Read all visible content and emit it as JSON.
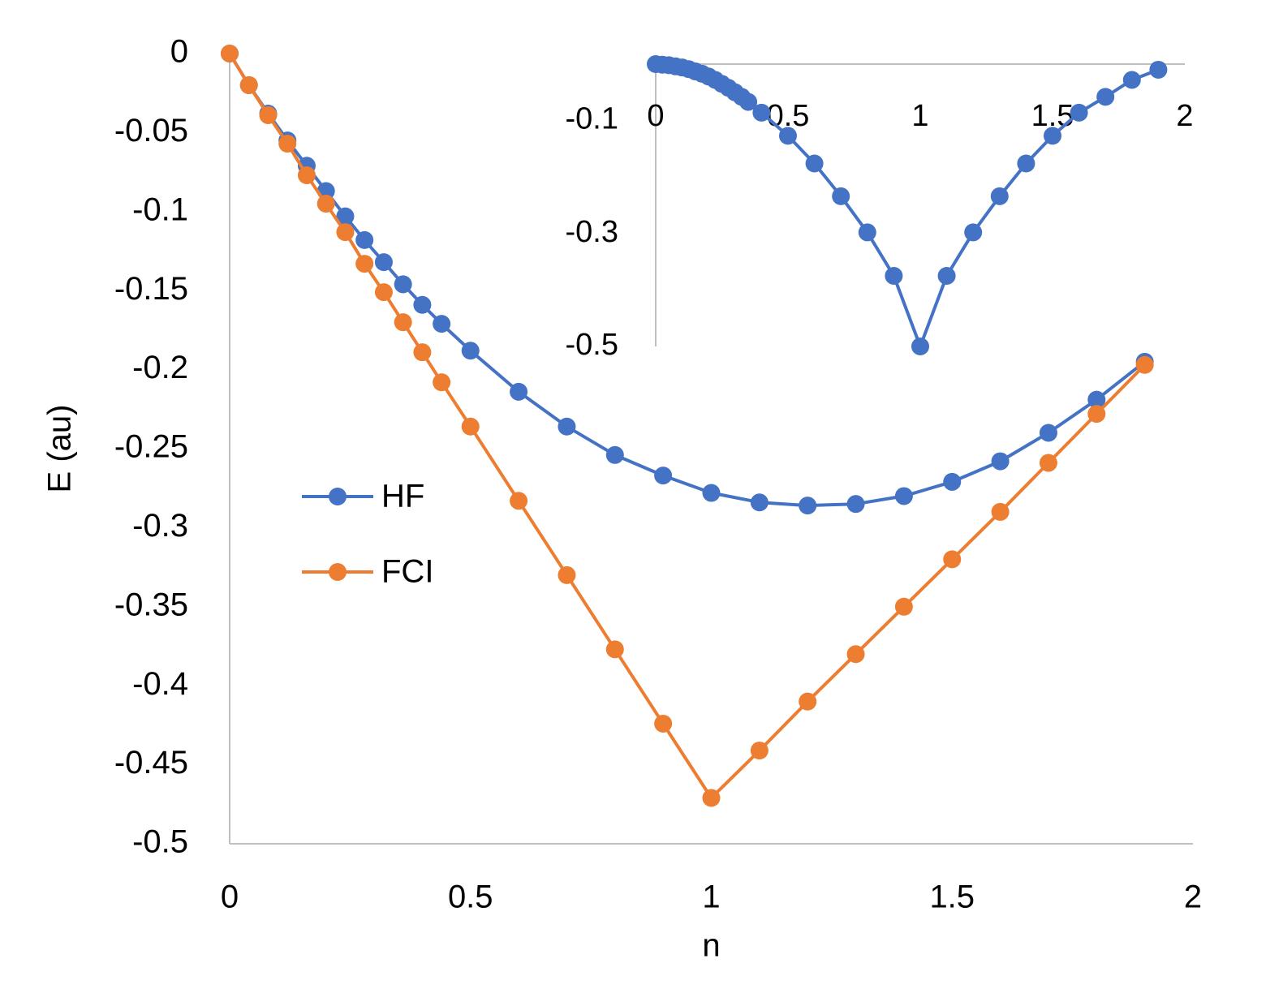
{
  "chart_data": [
    {
      "type": "line",
      "title": "",
      "xlabel": "n",
      "ylabel": "E (au)",
      "xlim": [
        0,
        2
      ],
      "ylim": [
        -0.5,
        0
      ],
      "xticks": [
        "0",
        "0.5",
        "1",
        "1.5",
        "2"
      ],
      "yticks": [
        "0",
        "-0.05",
        "-0.1",
        "-0.15",
        "-0.2",
        "-0.25",
        "-0.3",
        "-0.35",
        "-0.4",
        "-0.45",
        "-0.5"
      ],
      "grid": false,
      "legend": "center-left",
      "series": [
        {
          "name": "HF",
          "color": "#4472c4",
          "x": [
            0,
            0.04,
            0.08,
            0.12,
            0.16,
            0.2,
            0.24,
            0.28,
            0.32,
            0.36,
            0.4,
            0.44,
            0.5,
            0.6,
            0.7,
            0.8,
            0.9,
            1.0,
            1.1,
            1.2,
            1.3,
            1.4,
            1.5,
            1.6,
            1.7,
            1.8,
            1.9
          ],
          "y": [
            0,
            -0.02,
            -0.038,
            -0.055,
            -0.071,
            -0.087,
            -0.103,
            -0.118,
            -0.132,
            -0.146,
            -0.159,
            -0.171,
            -0.188,
            -0.214,
            -0.236,
            -0.254,
            -0.267,
            -0.278,
            -0.284,
            -0.286,
            -0.285,
            -0.28,
            -0.271,
            -0.258,
            -0.24,
            -0.219,
            -0.195
          ]
        },
        {
          "name": "FCI",
          "color": "#ed7d31",
          "x": [
            0,
            0.04,
            0.08,
            0.12,
            0.16,
            0.2,
            0.24,
            0.28,
            0.32,
            0.36,
            0.4,
            0.44,
            0.5,
            0.6,
            0.7,
            0.8,
            0.9,
            1.0,
            1.1,
            1.2,
            1.3,
            1.4,
            1.5,
            1.6,
            1.7,
            1.8,
            1.9
          ],
          "y": [
            0,
            -0.02,
            -0.039,
            -0.057,
            -0.077,
            -0.095,
            -0.113,
            -0.133,
            -0.151,
            -0.17,
            -0.189,
            -0.208,
            -0.236,
            -0.283,
            -0.33,
            -0.377,
            -0.424,
            -0.471,
            -0.441,
            -0.41,
            -0.38,
            -0.35,
            -0.32,
            -0.29,
            -0.259,
            -0.228,
            -0.197
          ]
        }
      ]
    },
    {
      "type": "line",
      "title": "",
      "xlabel": "",
      "ylabel": "",
      "xlim": [
        0,
        2
      ],
      "ylim": [
        -0.5,
        0
      ],
      "xticks": [
        "0",
        "0.5",
        "1",
        "1.5",
        "2"
      ],
      "yticks": [
        "-0.1",
        "-0.3",
        "-0.5"
      ],
      "grid": false,
      "series": [
        {
          "color": "#4472c4",
          "x": [
            0,
            0.025,
            0.05,
            0.075,
            0.1,
            0.125,
            0.15,
            0.175,
            0.2,
            0.225,
            0.25,
            0.275,
            0.3,
            0.325,
            0.35,
            0.4,
            0.5,
            0.6,
            0.7,
            0.8,
            0.9,
            1.0,
            1.1,
            1.2,
            1.3,
            1.4,
            1.5,
            1.6,
            1.7,
            1.8,
            1.9
          ],
          "y": [
            0,
            -0.001,
            -0.002,
            -0.004,
            -0.006,
            -0.009,
            -0.013,
            -0.017,
            -0.022,
            -0.028,
            -0.035,
            -0.042,
            -0.05,
            -0.058,
            -0.067,
            -0.086,
            -0.127,
            -0.176,
            -0.234,
            -0.298,
            -0.375,
            -0.5,
            -0.375,
            -0.298,
            -0.234,
            -0.176,
            -0.127,
            -0.086,
            -0.058,
            -0.028,
            -0.01
          ]
        }
      ]
    }
  ]
}
